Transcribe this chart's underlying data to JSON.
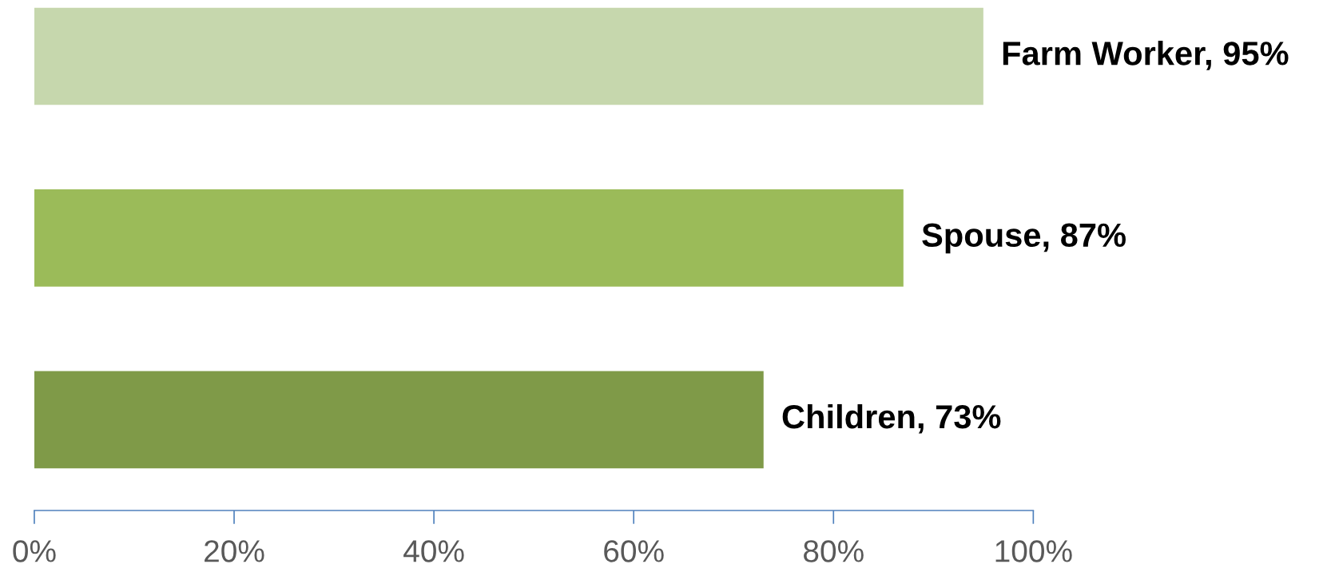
{
  "chart_data": {
    "type": "bar",
    "orientation": "horizontal",
    "categories": [
      null,
      null,
      null
    ],
    "values": [
      95,
      87,
      73
    ],
    "colors": [
      "#c6d7ad",
      "#9bbb59",
      "#7f9a48"
    ],
    "value_labels": [
      "Farm Worker, 95%",
      "Spouse, 87%",
      "Children, 73%"
    ],
    "xlim": [
      0,
      100
    ],
    "xticks": [
      {
        "value": 0,
        "label": "0%"
      },
      {
        "value": 20,
        "label": "20%"
      },
      {
        "value": 40,
        "label": "40%"
      },
      {
        "value": 60,
        "label": "60%"
      },
      {
        "value": 80,
        "label": "80%"
      },
      {
        "value": 100,
        "label": "100%"
      }
    ],
    "grid": false,
    "legend": false
  }
}
